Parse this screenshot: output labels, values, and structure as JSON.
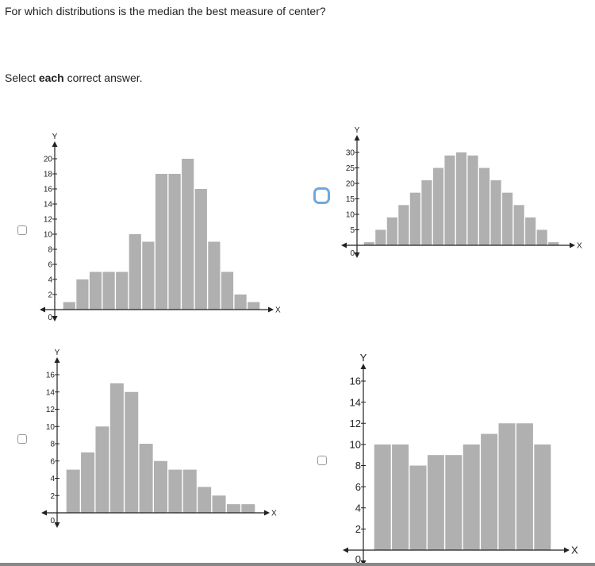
{
  "question": "For which distributions is the median the best measure of center?",
  "instruction": {
    "prefix": "Select ",
    "bold": "each",
    "suffix": " correct answer."
  },
  "colors": {
    "bar": "#b0b0b0",
    "axis": "#222222",
    "focus": "#6fa8dc"
  },
  "options": [
    {
      "checked": false,
      "focused": false
    },
    {
      "checked": false,
      "focused": true
    },
    {
      "checked": false,
      "focused": false
    },
    {
      "checked": false,
      "focused": false
    }
  ],
  "chart_data": [
    {
      "type": "bar",
      "xlabel": "X",
      "ylabel": "Y",
      "origin_label": "0",
      "ylim": [
        0,
        20
      ],
      "yticks": [
        2,
        4,
        6,
        8,
        10,
        12,
        14,
        16,
        18,
        20
      ],
      "values": [
        1,
        4,
        5,
        5,
        5,
        10,
        9,
        18,
        18,
        20,
        16,
        9,
        5,
        2,
        1
      ]
    },
    {
      "type": "bar",
      "xlabel": "X",
      "ylabel": "Y",
      "origin_label": "0",
      "ylim": [
        0,
        30
      ],
      "yticks": [
        5,
        10,
        15,
        20,
        25,
        30
      ],
      "values": [
        1,
        5,
        9,
        13,
        17,
        21,
        25,
        29,
        30,
        29,
        25,
        21,
        17,
        13,
        9,
        5,
        1
      ]
    },
    {
      "type": "bar",
      "xlabel": "X",
      "ylabel": "Y",
      "origin_label": "0",
      "ylim": [
        0,
        16
      ],
      "yticks": [
        2,
        4,
        6,
        8,
        10,
        12,
        14,
        16
      ],
      "values": [
        5,
        7,
        10,
        15,
        14,
        8,
        6,
        5,
        5,
        3,
        2,
        1,
        1
      ]
    },
    {
      "type": "bar",
      "xlabel": "X",
      "ylabel": "Y",
      "origin_label": "0",
      "ylim": [
        0,
        16
      ],
      "yticks": [
        2,
        4,
        6,
        8,
        10,
        12,
        14,
        16
      ],
      "values": [
        10,
        10,
        8,
        9,
        9,
        10,
        11,
        12,
        12,
        10
      ]
    }
  ]
}
